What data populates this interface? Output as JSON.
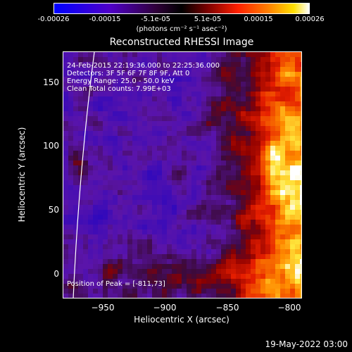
{
  "colorbar": {
    "ticks": [
      "-0.00026",
      "-0.00015",
      "-5.1e-05",
      "5.1e-05",
      "0.00015",
      "0.00026"
    ],
    "units": "(photons cm⁻² s⁻¹ asec⁻²)"
  },
  "title": "Reconstructed RHESSI Image",
  "info": {
    "time": "24-Feb-2015 22:19:36.000 to 22:25:36.000",
    "detectors": "Detectors: 3F 5F 6F 7F 8F 9F, Att 0",
    "energy": "Energy Range: 25.0 - 50.0 keV",
    "clean": "Clean     Total counts: 7.99E+03",
    "peak": "Position of Peak = [-811,73]"
  },
  "axes": {
    "xlabel": "Heliocentric X (arcsec)",
    "ylabel": "Heliocentric Y (arcsec)",
    "xticks": [
      "−950",
      "−900",
      "−850",
      "−800"
    ],
    "yticks": [
      "150",
      "100",
      "50",
      "0"
    ],
    "xlim": [
      -987,
      -793
    ],
    "ylim": [
      -17,
      180
    ]
  },
  "timestamp": "19-May-2022 03:00"
}
